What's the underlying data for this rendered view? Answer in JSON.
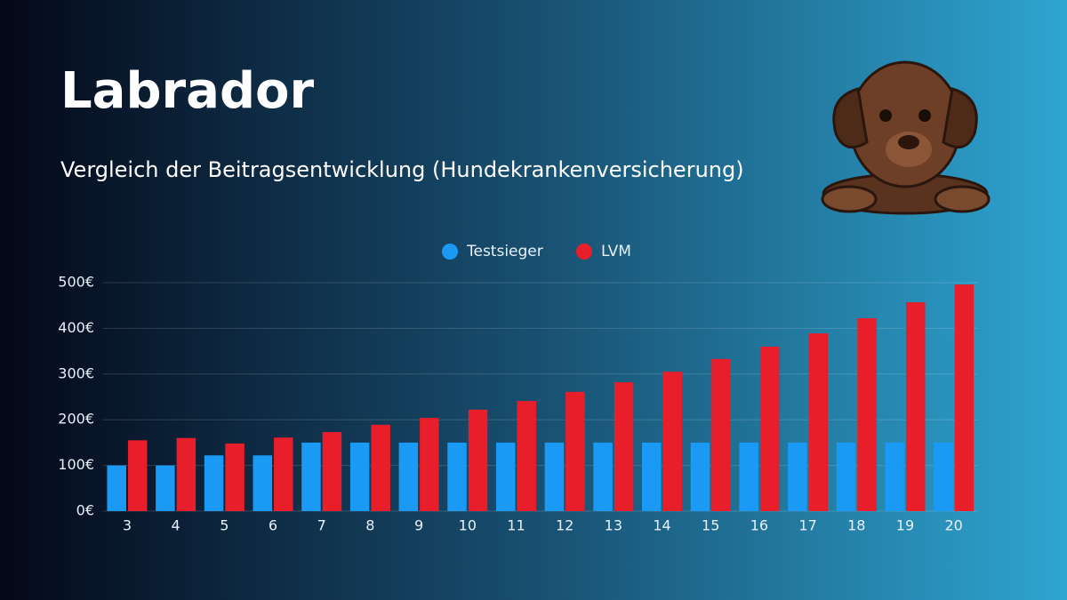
{
  "chart_data": {
    "type": "bar",
    "title": "Labrador",
    "subtitle": "Vergleich der Beitragsentwicklung (Hundekrankenversicherung)",
    "categories": [
      "3",
      "4",
      "5",
      "6",
      "7",
      "8",
      "9",
      "10",
      "11",
      "12",
      "13",
      "14",
      "15",
      "16",
      "17",
      "18",
      "19",
      "20"
    ],
    "series": [
      {
        "name": "Testsieger",
        "color": "#1a9af5",
        "values": [
          100,
          100,
          122,
          122,
          150,
          150,
          150,
          150,
          150,
          150,
          150,
          150,
          150,
          150,
          150,
          150,
          150,
          150
        ]
      },
      {
        "name": "LVM",
        "color": "#e81e2a",
        "values": [
          155,
          160,
          148,
          161,
          173,
          189,
          204,
          222,
          241,
          261,
          282,
          305,
          333,
          360,
          389,
          422,
          457,
          496
        ]
      }
    ],
    "ylim": [
      0,
      500
    ],
    "yticks": [
      {
        "value": 0,
        "label": "0€"
      },
      {
        "value": 100,
        "label": "100€"
      },
      {
        "value": 200,
        "label": "200€"
      },
      {
        "value": 300,
        "label": "300€"
      },
      {
        "value": 400,
        "label": "400€"
      },
      {
        "value": 500,
        "label": "500€"
      }
    ],
    "grid": true
  }
}
